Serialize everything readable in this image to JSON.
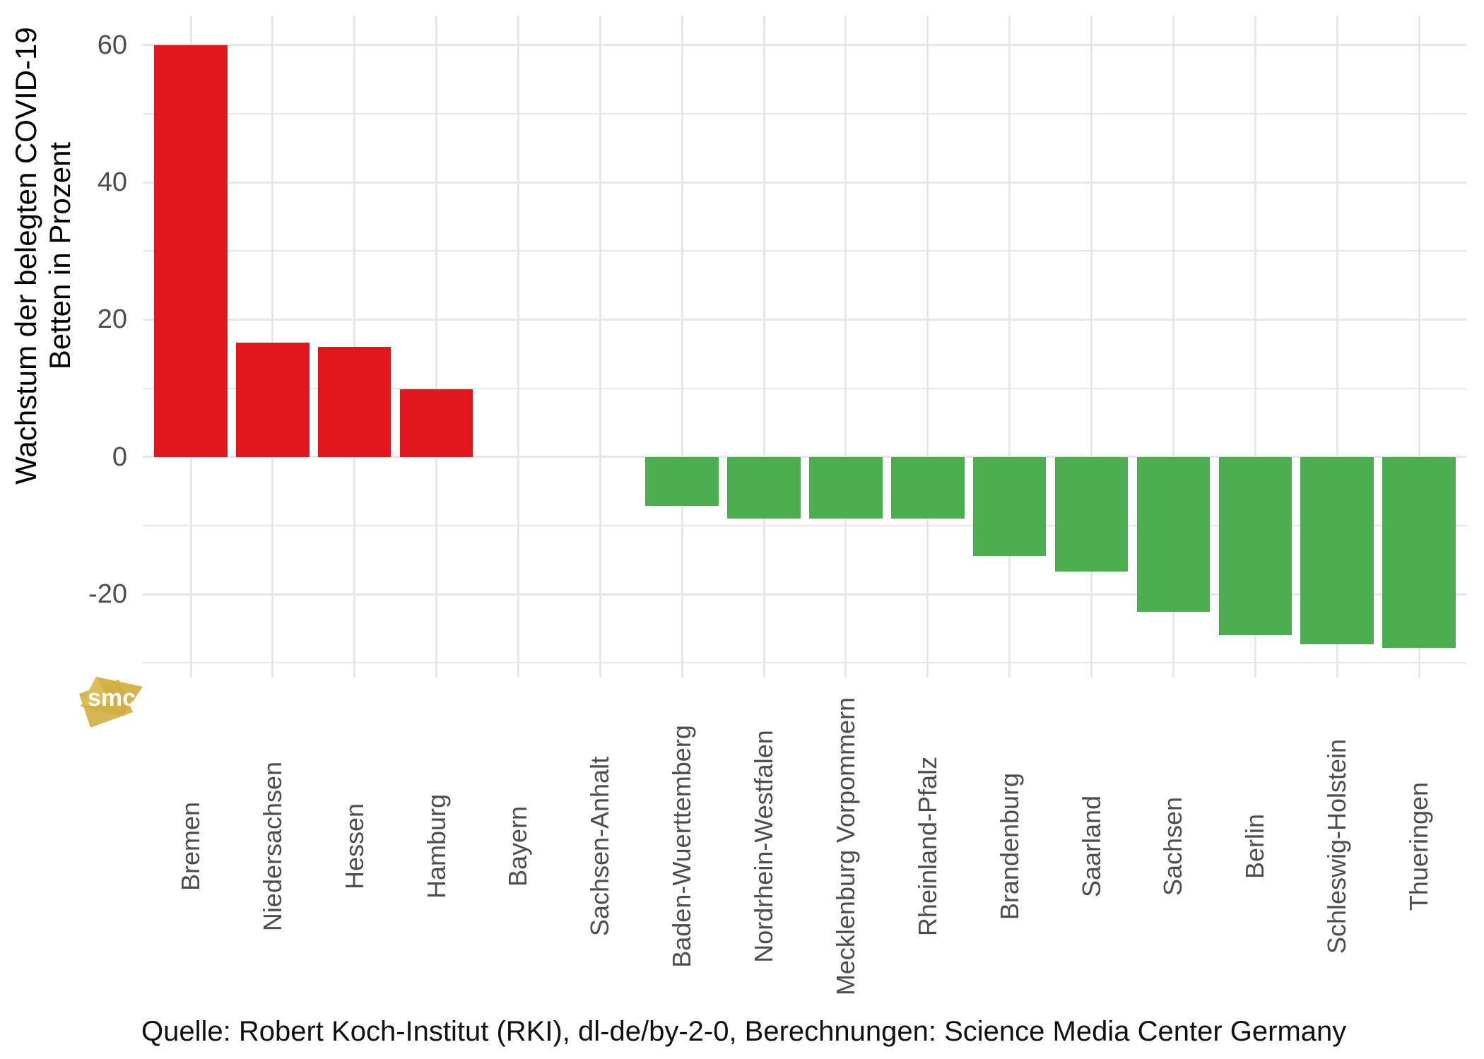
{
  "chart_data": {
    "type": "bar",
    "title": "",
    "ylabel_line1": "Wachstum der belegten COVID-19",
    "ylabel_line2": "Betten in Prozent",
    "xlabel": "",
    "categories": [
      "Bremen",
      "Niedersachsen",
      "Hessen",
      "Hamburg",
      "Bayern",
      "Sachsen-Anhalt",
      "Baden-Wuerttemberg",
      "Nordrhein-Westfalen",
      "Mecklenburg Vorpommern",
      "Rheinland-Pfalz",
      "Brandenburg",
      "Saarland",
      "Sachsen",
      "Berlin",
      "Schleswig-Holstein",
      "Thueringen"
    ],
    "values": [
      60,
      16.6,
      16,
      9.9,
      0,
      0,
      -7.1,
      -9,
      -9,
      -9,
      -14.4,
      -16.7,
      -22.6,
      -26,
      -27.3,
      -27.8
    ],
    "yticks_major": [
      60,
      40,
      20,
      0,
      -20
    ],
    "yticks_minor": [
      50,
      30,
      10,
      -10,
      -30
    ],
    "ylim": [
      -32.1,
      64.3
    ],
    "grid": "on",
    "legend": "none",
    "bar_colors_rule": "positive red, negative green",
    "positive_color": "#e0181e",
    "negative_color": "#4dae4f",
    "gridline_color": "#e7e7e7",
    "axis_text_color": "#4d4d4d",
    "caption": "Quelle: Robert Koch-Institut (RKI), dl-de/by-2-0, Berechnungen: Science Media Center Germany"
  },
  "logo": {
    "label": "smc",
    "color": "#d6b44c"
  }
}
